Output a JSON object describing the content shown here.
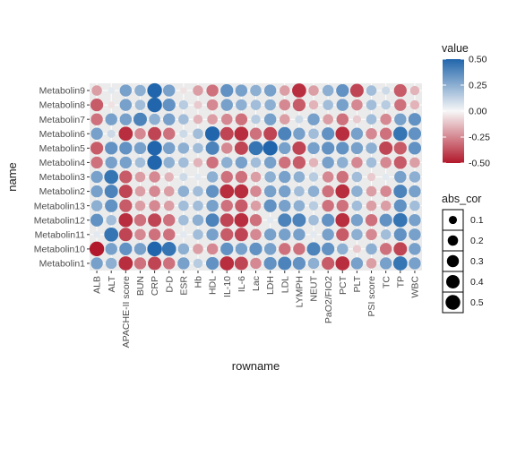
{
  "chart_data": {
    "type": "heatmap",
    "xlabel": "rowname",
    "ylabel": "name",
    "x_categories": [
      "ALB",
      "ALT",
      "APACHE-II score",
      "BUN",
      "CRP",
      "D-D",
      "ESR",
      "Hb",
      "HDL",
      "IL-10",
      "IL-6",
      "Lac",
      "LDH",
      "LDL",
      "LYMPH",
      "NEUT",
      "PaO2/FIO2",
      "PCT",
      "PLT",
      "PSI score",
      "TC",
      "TP",
      "WBC"
    ],
    "y_categories": [
      "Metabolin9",
      "Metabolin8",
      "Metabolin7",
      "Metabolin6",
      "Metabolin5",
      "Metabolin4",
      "Metabolin3",
      "Metabolin2",
      "Metabolin13",
      "Metabolin12",
      "Metabolin11",
      "Metabolin10",
      "Metabolin1"
    ],
    "values": [
      [
        -0.2,
        0.05,
        0.3,
        0.25,
        0.5,
        0.3,
        -0.05,
        -0.2,
        -0.3,
        0.35,
        0.3,
        0.25,
        0.3,
        -0.2,
        -0.45,
        -0.2,
        0.25,
        0.35,
        -0.4,
        0.2,
        0.1,
        -0.35,
        -0.15
      ],
      [
        -0.35,
        -0.05,
        0.3,
        0.2,
        0.5,
        0.35,
        0.15,
        -0.1,
        -0.25,
        0.3,
        0.25,
        0.2,
        0.25,
        -0.25,
        -0.35,
        -0.15,
        0.2,
        0.3,
        -0.25,
        0.2,
        0.15,
        -0.3,
        -0.15
      ],
      [
        -0.3,
        0.3,
        0.3,
        0.4,
        0.25,
        0.3,
        0.2,
        -0.15,
        -0.2,
        -0.25,
        -0.3,
        0.15,
        0.3,
        -0.2,
        0.1,
        0.3,
        -0.2,
        -0.3,
        -0.1,
        0.2,
        -0.25,
        0.3,
        0.35
      ],
      [
        0.3,
        0.1,
        -0.45,
        -0.25,
        -0.4,
        -0.3,
        0.1,
        0.2,
        0.5,
        -0.4,
        -0.45,
        -0.3,
        -0.4,
        0.4,
        0.3,
        0.2,
        0.35,
        -0.45,
        0.3,
        -0.25,
        -0.3,
        0.45,
        0.35
      ],
      [
        -0.35,
        0.35,
        0.35,
        0.3,
        0.5,
        0.3,
        0.25,
        0.2,
        0.4,
        -0.25,
        -0.4,
        0.45,
        0.5,
        0.3,
        -0.4,
        0.3,
        0.35,
        0.35,
        0.3,
        0.25,
        -0.4,
        -0.35,
        0.35
      ],
      [
        -0.3,
        0.3,
        0.3,
        0.2,
        0.5,
        0.25,
        0.2,
        -0.15,
        -0.3,
        0.25,
        0.3,
        0.2,
        0.3,
        -0.3,
        -0.35,
        -0.15,
        0.3,
        0.25,
        -0.25,
        0.2,
        -0.25,
        -0.35,
        -0.2
      ],
      [
        0.3,
        0.45,
        -0.35,
        -0.2,
        -0.25,
        -0.15,
        0.1,
        0.05,
        0.25,
        -0.3,
        -0.3,
        -0.2,
        0.25,
        0.3,
        0.25,
        0.15,
        -0.25,
        -0.3,
        0.2,
        -0.1,
        0.05,
        0.3,
        0.25
      ],
      [
        0.3,
        0.4,
        -0.4,
        -0.2,
        -0.25,
        -0.2,
        0.25,
        0.2,
        0.35,
        -0.45,
        -0.45,
        -0.25,
        0.3,
        0.3,
        0.2,
        0.25,
        -0.3,
        -0.45,
        0.25,
        -0.2,
        -0.25,
        0.4,
        0.3
      ],
      [
        0.25,
        0.35,
        -0.35,
        -0.2,
        -0.25,
        -0.2,
        0.2,
        0.2,
        0.3,
        -0.3,
        -0.35,
        -0.2,
        0.35,
        0.3,
        0.25,
        0.15,
        -0.3,
        -0.3,
        0.2,
        -0.2,
        -0.2,
        0.35,
        0.2
      ],
      [
        0.35,
        0.2,
        -0.45,
        -0.3,
        -0.4,
        -0.3,
        0.2,
        0.25,
        0.4,
        -0.4,
        -0.45,
        -0.3,
        0.05,
        0.4,
        0.4,
        0.2,
        0.35,
        -0.45,
        0.3,
        -0.3,
        0.35,
        0.45,
        0.3
      ],
      [
        0.05,
        0.45,
        -0.4,
        -0.25,
        -0.3,
        -0.3,
        0.05,
        0.2,
        0.3,
        -0.35,
        -0.4,
        -0.25,
        0.3,
        0.3,
        0.3,
        0.05,
        0.3,
        -0.35,
        0.25,
        -0.25,
        0.2,
        0.35,
        0.3
      ],
      [
        -0.5,
        0.3,
        0.35,
        0.3,
        0.5,
        0.45,
        0.25,
        -0.2,
        -0.25,
        0.35,
        0.3,
        0.35,
        0.3,
        -0.3,
        -0.3,
        0.4,
        0.35,
        0.25,
        -0.1,
        0.25,
        -0.3,
        -0.4,
        0.3
      ],
      [
        0.3,
        0.25,
        -0.45,
        -0.3,
        -0.4,
        -0.3,
        0.3,
        0.15,
        0.35,
        -0.45,
        -0.4,
        -0.25,
        0.35,
        0.4,
        0.35,
        0.25,
        -0.35,
        -0.45,
        0.3,
        -0.2,
        0.3,
        0.45,
        0.3
      ]
    ],
    "color_legend": {
      "title": "value",
      "ticks": [
        "0.50",
        "0.25",
        "0.00",
        "-0.25",
        "-0.50"
      ],
      "range": [
        -0.5,
        0.5
      ],
      "colors": {
        "low": "#b2182b",
        "mid": "#f7f7f7",
        "high": "#2166ac"
      }
    },
    "size_legend": {
      "title": "abs_cor",
      "ticks": [
        "0.1",
        "0.2",
        "0.3",
        "0.4",
        "0.5"
      ],
      "values": [
        0.1,
        0.2,
        0.3,
        0.4,
        0.5
      ]
    },
    "grid": true,
    "panel_background": "#ebebeb",
    "legend_position": "right"
  }
}
